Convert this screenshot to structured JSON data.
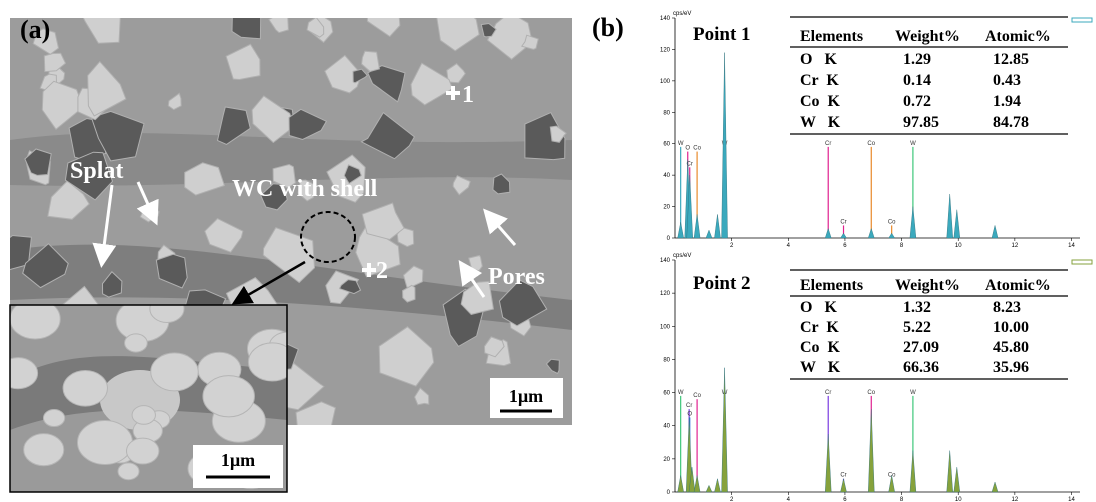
{
  "panel_a": {
    "label": "(a)",
    "annotations": {
      "splat": "Splat",
      "wc": "WC with shell",
      "pores": "Pores",
      "point1": "1",
      "point2": "2"
    },
    "scale_bar": "1µm",
    "inset_scale_bar": "1µm"
  },
  "panel_b": {
    "label": "(b)",
    "spectra": [
      {
        "title": "Point 1",
        "y_unit": "cps/eV",
        "ylim": [
          0,
          140
        ],
        "yticks": [
          0,
          20,
          40,
          60,
          80,
          100,
          120,
          140
        ],
        "xlim": [
          0,
          14.3
        ],
        "xticks": [
          2,
          4,
          6,
          8,
          10,
          12,
          14
        ],
        "fill": "#3ba9bd",
        "peaks": {
          "x": [
            0.2,
            0.45,
            0.52,
            0.78,
            1.2,
            1.5,
            1.75,
            5.41,
            5.95,
            6.93,
            7.65,
            8.4,
            9.7,
            9.95,
            11.3
          ],
          "values": [
            10,
            50,
            40,
            15,
            5,
            15,
            118,
            6,
            3,
            6,
            3,
            20,
            28,
            18,
            8
          ]
        },
        "element_lines": [
          {
            "label": "W",
            "x": 0.2,
            "height": 58,
            "color": "#3ba9bd"
          },
          {
            "label": "O",
            "x": 0.45,
            "height": 55,
            "color": "#e0208f"
          },
          {
            "label": "Cr",
            "x": 0.52,
            "height": 45,
            "color": "#e0208f"
          },
          {
            "label": "Co",
            "x": 0.78,
            "height": 55,
            "color": "#e8892a"
          },
          {
            "label": "W",
            "x": 1.75,
            "height": 58,
            "color": "#3ba9bd"
          },
          {
            "label": "Cr",
            "x": 5.41,
            "height": 58,
            "color": "#e0208f"
          },
          {
            "label": "Cr",
            "x": 5.95,
            "height": 8,
            "color": "#e0208f"
          },
          {
            "label": "Co",
            "x": 6.93,
            "height": 58,
            "color": "#e8892a"
          },
          {
            "label": "Co",
            "x": 7.65,
            "height": 8,
            "color": "#e8892a"
          },
          {
            "label": "W",
            "x": 8.4,
            "height": 58,
            "color": "#3ec77a"
          }
        ],
        "table": {
          "header": [
            "Elements",
            "Weight%",
            "Atomic%"
          ],
          "rows": [
            [
              "O   K",
              "1.29",
              "12.85"
            ],
            [
              "Cr  K",
              "0.14",
              "0.43"
            ],
            [
              "Co  K",
              "0.72",
              "1.94"
            ],
            [
              "W   K",
              "97.85",
              "84.78"
            ]
          ]
        }
      },
      {
        "title": "Point 2",
        "y_unit": "cps/eV",
        "ylim": [
          0,
          140
        ],
        "yticks": [
          0,
          20,
          40,
          60,
          80,
          100,
          120,
          140
        ],
        "xlim": [
          0,
          14.3
        ],
        "xticks": [
          2,
          4,
          6,
          8,
          10,
          12,
          14
        ],
        "fill": "#86a23c",
        "peaks": {
          "x": [
            0.2,
            0.5,
            0.6,
            0.78,
            1.2,
            1.5,
            1.75,
            5.41,
            5.95,
            6.93,
            7.65,
            8.4,
            9.7,
            9.95,
            11.3
          ],
          "values": [
            10,
            45,
            15,
            10,
            4,
            8,
            75,
            35,
            8,
            50,
            10,
            25,
            25,
            15,
            6
          ]
        },
        "element_lines": [
          {
            "label": "W",
            "x": 0.2,
            "height": 58,
            "color": "#3ec77a"
          },
          {
            "label": "Cr",
            "x": 0.5,
            "height": 50,
            "color": "#7a3be0"
          },
          {
            "label": "O",
            "x": 0.52,
            "height": 45,
            "color": "#2a6fe0"
          },
          {
            "label": "Co",
            "x": 0.78,
            "height": 56,
            "color": "#e0208f"
          },
          {
            "label": "W",
            "x": 1.75,
            "height": 58,
            "color": "#3ec77a"
          },
          {
            "label": "Cr",
            "x": 5.41,
            "height": 58,
            "color": "#7a3be0"
          },
          {
            "label": "Cr",
            "x": 5.95,
            "height": 8,
            "color": "#7a3be0"
          },
          {
            "label": "Co",
            "x": 6.93,
            "height": 58,
            "color": "#e0208f"
          },
          {
            "label": "Co",
            "x": 7.65,
            "height": 8,
            "color": "#e0208f"
          },
          {
            "label": "W",
            "x": 8.4,
            "height": 58,
            "color": "#3ec77a"
          }
        ],
        "table": {
          "header": [
            "Elements",
            "Weight%",
            "Atomic%"
          ],
          "rows": [
            [
              "O   K",
              "1.32",
              "8.23"
            ],
            [
              "Cr  K",
              "5.22",
              "10.00"
            ],
            [
              "Co  K",
              "27.09",
              "45.80"
            ],
            [
              "W   K",
              "66.36",
              "35.96"
            ]
          ]
        }
      }
    ]
  }
}
